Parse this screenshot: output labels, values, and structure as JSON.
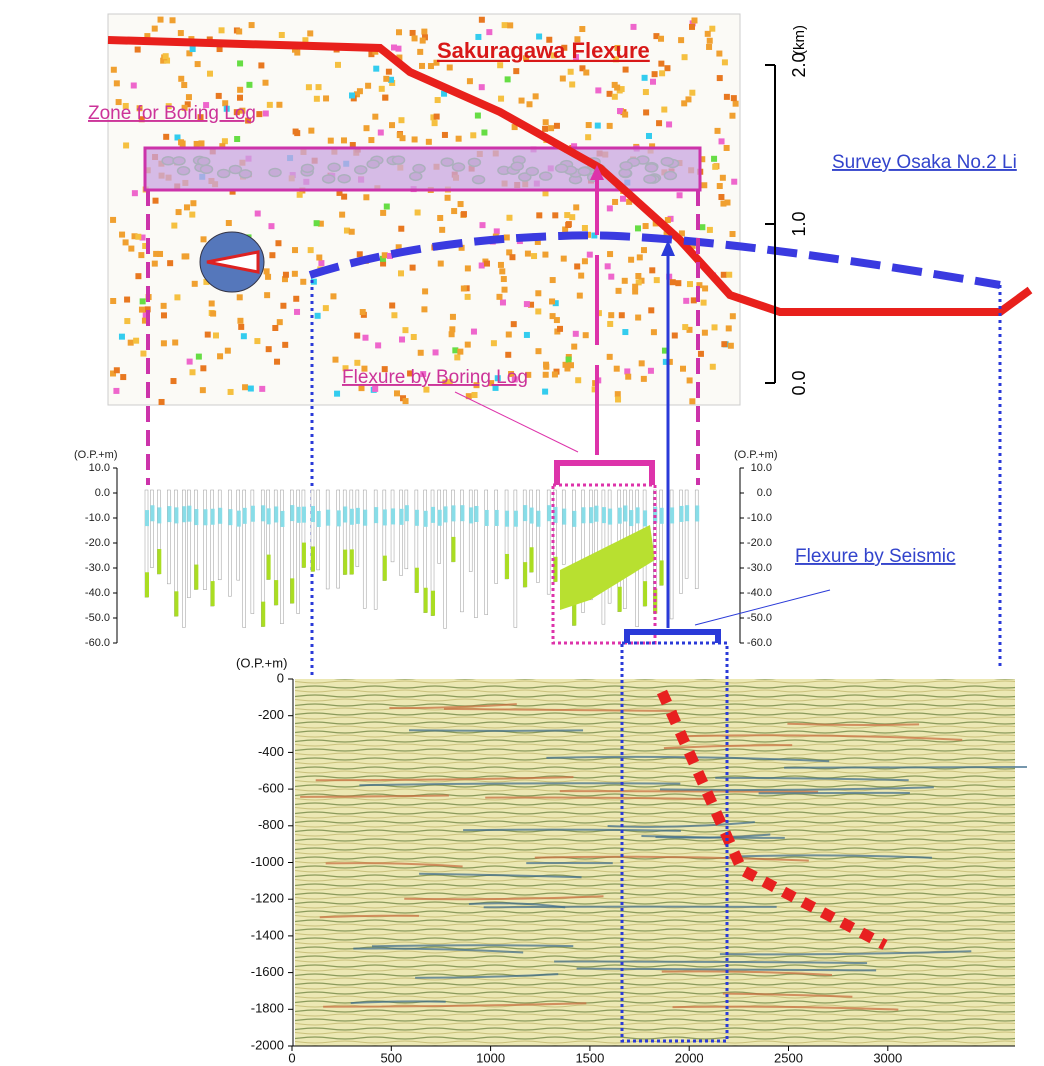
{
  "labels": {
    "sakuragawa": "Sakuragawa Flexure",
    "zone": "Zone for Boring Log",
    "survey": "Survey Osaka No.2 Li",
    "boring": "Flexure by Boring Log",
    "seismic": "Flexure by Seismic"
  },
  "map_scale": {
    "unit": "(km)",
    "ticks": [
      "0.0",
      "1.0",
      "2.0"
    ]
  },
  "boring_axis": {
    "unit": "(O.P.+m)",
    "ticks": [
      "10.0",
      "0.0",
      "-10.0",
      "-20.0",
      "-30.0",
      "-40.0",
      "-50.0",
      "-60.0"
    ]
  },
  "seismic_axis": {
    "unit": "(O.P.+m)",
    "yticks": [
      "0",
      "-200",
      "-400",
      "-600",
      "-800",
      "-1000",
      "-1200",
      "-1400",
      "-1600",
      "-1800",
      "-2000"
    ],
    "xticks": [
      "0",
      "500",
      "1000",
      "1500",
      "2000",
      "2500",
      "3000"
    ]
  }
}
